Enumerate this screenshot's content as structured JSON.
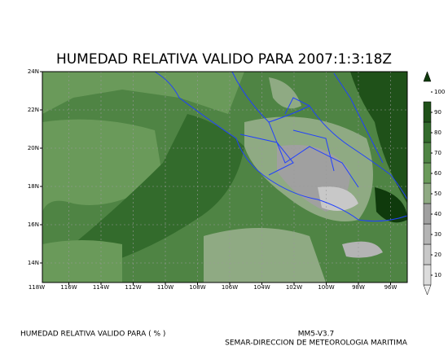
{
  "title": "HUMEDAD RELATIVA VALIDO PARA 2007:1:3:18Z",
  "lat_labels": [
    "24N",
    "22N",
    "20N",
    "18N",
    "16N",
    "14N"
  ],
  "lon_labels": [
    "118W",
    "116W",
    "114W",
    "112W",
    "110W",
    "108W",
    "106W",
    "104W",
    "102W",
    "100W",
    "98W",
    "96W"
  ],
  "colorbar": {
    "levels": [
      10,
      20,
      30,
      40,
      50,
      60,
      70,
      80,
      90,
      100
    ],
    "colors": [
      "#f0f0f0",
      "#dcdcdc",
      "#c8c8c8",
      "#b4b4b4",
      "#a0a0a0",
      "#8faa83",
      "#6a9a5a",
      "#4f8444",
      "#336b2c",
      "#1f5119",
      "#0f3a0c"
    ]
  },
  "footer": {
    "left": "HUMEDAD RELATIVA VALIDO PARA ( % )",
    "model": "MM5-V3.7",
    "agency": "SEMAR-DIRECCION DE METEOROLOGIA MARITIMA"
  }
}
